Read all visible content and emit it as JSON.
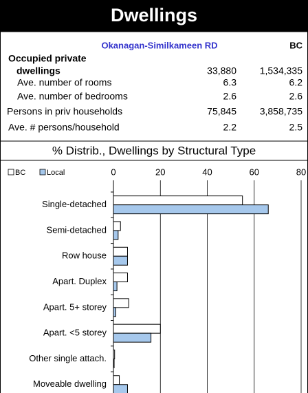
{
  "header": {
    "title": "Dwellings"
  },
  "table": {
    "columns": [
      "Okanagan-Similkameen RD",
      "BC"
    ],
    "rows": [
      {
        "label": [
          "Occupied private",
          "dwellings"
        ],
        "values": [
          "33,880",
          "1,534,335"
        ]
      },
      {
        "label": [
          "Ave. number of rooms"
        ],
        "values": [
          "6.3",
          "6.2"
        ]
      },
      {
        "label": [
          "Ave. number of bedrooms"
        ],
        "values": [
          "2.6",
          "2.6"
        ]
      },
      {
        "label": [
          "Persons in priv households"
        ],
        "values": [
          "75,845",
          "3,858,735"
        ]
      },
      {
        "label": [
          "Ave. # persons/household"
        ],
        "values": [
          "2.2",
          "2.5"
        ]
      }
    ]
  },
  "chart_data": {
    "type": "hbar",
    "title": "% Distrib., Dwellings by Structural Type",
    "categories": [
      "Single-detached",
      "Semi-detached",
      "Row house",
      "Apart. Duplex",
      "Apart. 5+ storey",
      "Apart. <5 storey",
      "Other single attach.",
      "Moveable dwelling"
    ],
    "series": [
      {
        "name": "BC",
        "color": "#ffffff",
        "values": [
          55,
          3,
          6,
          6,
          6.5,
          20,
          0.5,
          2.5
        ]
      },
      {
        "name": "Local",
        "color": "#a6c8ec",
        "values": [
          66,
          2,
          6,
          1.5,
          1,
          16,
          0.3,
          6
        ]
      }
    ],
    "xlim": [
      0,
      80
    ],
    "xticks": [
      0,
      20,
      40,
      60,
      80
    ],
    "grid": true
  }
}
